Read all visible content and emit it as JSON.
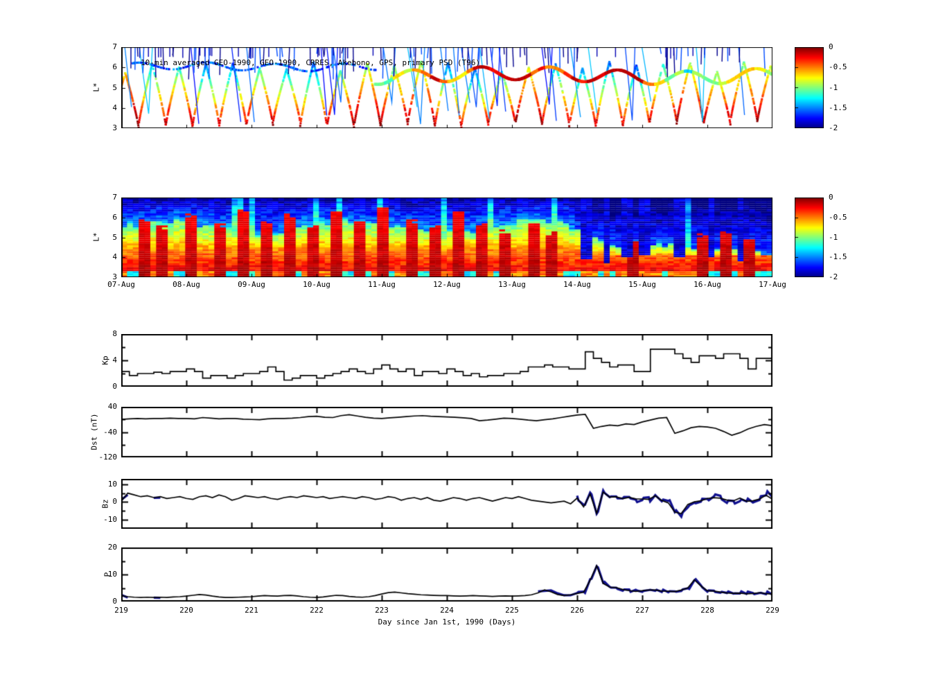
{
  "figure": {
    "background": "#ffffff"
  },
  "colors": {
    "axis": "#000000",
    "line_black": "#000000",
    "overlay_blue": "#10108f",
    "colormap": "jet",
    "colorbar_top": "#7f0000",
    "colorbar_bottom": "#00007f"
  },
  "xaxis": {
    "label": "Day since Jan 1st, 1990 (Days)",
    "tick_labels": [
      "219",
      "220",
      "221",
      "222",
      "223",
      "224",
      "225",
      "226",
      "227",
      "228",
      "229"
    ],
    "xlim": [
      219,
      229
    ]
  },
  "chart_data": [
    {
      "id": "psd_scatter",
      "type": "scatter",
      "title": "10-min averaged GEO-1990, GEO-1990, CRRES, Akebono, GPS, primary PSD (T96)",
      "ylabel": "L*",
      "ylim": [
        3,
        7
      ],
      "yticks": [
        7,
        6,
        5,
        4,
        3
      ],
      "xlim": [
        219,
        229
      ],
      "value_range": [
        -2,
        0
      ],
      "colorbar_ticks": [
        "0",
        "-0.5",
        "-1",
        "-1.5",
        "-2"
      ],
      "render": {
        "seed": 7,
        "crres_period_days": 0.413,
        "crres_lmin": 3.05,
        "crres_lmax": 6.25,
        "geo_band_start_day": 222.9,
        "geo_band_center_l": 5.6,
        "early_band_l": 6.05,
        "akebono_dash_count": 80,
        "steep_pass_count": 26
      }
    },
    {
      "id": "psd_spectrogram",
      "type": "heatmap",
      "ylabel": "L*",
      "ylim": [
        3,
        7
      ],
      "yticks": [
        7,
        6,
        5,
        4,
        3
      ],
      "xlim": [
        219,
        229
      ],
      "value_range": [
        -2,
        0
      ],
      "colorbar_ticks": [
        "0",
        "-0.5",
        "-1",
        "-1.5",
        "-2"
      ],
      "xtick_labels": [
        "07-Aug",
        "08-Aug",
        "09-Aug",
        "10-Aug",
        "11-Aug",
        "12-Aug",
        "13-Aug",
        "14-Aug",
        "15-Aug",
        "16-Aug",
        "17-Aug"
      ],
      "render": {
        "seed": 11,
        "cols": 112,
        "rows": 40,
        "erosion_start_day": 225.9,
        "warm_plumes": [
          [
            219.35,
            6.0
          ],
          [
            219.65,
            5.6
          ],
          [
            220.1,
            6.3
          ],
          [
            220.5,
            5.8
          ],
          [
            220.85,
            6.6
          ],
          [
            221.25,
            5.9
          ],
          [
            221.6,
            6.2
          ],
          [
            221.95,
            5.7
          ],
          [
            222.3,
            6.4
          ],
          [
            222.65,
            5.9
          ],
          [
            223.05,
            6.6
          ],
          [
            223.45,
            6.0
          ],
          [
            223.8,
            5.6
          ],
          [
            224.2,
            6.3
          ],
          [
            224.55,
            5.8
          ],
          [
            224.9,
            5.5
          ],
          [
            225.3,
            5.9
          ],
          [
            225.6,
            5.4
          ],
          [
            226.9,
            4.9
          ],
          [
            227.9,
            5.2
          ],
          [
            228.3,
            5.4
          ],
          [
            228.65,
            5.0
          ]
        ],
        "cold_plumes": [
          [
            226.15,
            3.9
          ],
          [
            226.45,
            3.7
          ],
          [
            226.75,
            4.0
          ],
          [
            227.05,
            4.1
          ],
          [
            227.55,
            4.0
          ],
          [
            228.05,
            4.0
          ],
          [
            228.5,
            3.8
          ]
        ]
      }
    },
    {
      "id": "kp",
      "type": "line",
      "ylabel": "Kp",
      "ylim": [
        0,
        8
      ],
      "yticks": [
        [
          "8",
          8
        ],
        [
          "4",
          4
        ],
        [
          "0",
          0
        ]
      ],
      "yminor": [
        2,
        6
      ],
      "xlim": [
        219,
        229
      ],
      "step": true,
      "x_start": 219,
      "dt_days": 0.125,
      "values": [
        2.3,
        1.7,
        2.0,
        2.0,
        2.2,
        2.0,
        2.3,
        2.3,
        2.7,
        2.3,
        1.3,
        1.7,
        1.7,
        1.3,
        1.7,
        2.0,
        2.0,
        2.3,
        3.0,
        2.3,
        1.0,
        1.3,
        1.7,
        1.7,
        1.3,
        1.7,
        2.0,
        2.3,
        2.7,
        2.3,
        2.0,
        2.7,
        3.3,
        2.7,
        2.3,
        2.7,
        1.7,
        2.3,
        2.3,
        2.0,
        2.7,
        2.3,
        1.7,
        2.0,
        1.5,
        1.7,
        1.7,
        2.0,
        2.0,
        2.3,
        3.0,
        3.0,
        3.3,
        3.0,
        3.0,
        2.7,
        2.7,
        5.3,
        4.3,
        3.7,
        3.0,
        3.3,
        3.3,
        2.3,
        2.3,
        5.7,
        5.7,
        5.7,
        5.0,
        4.3,
        3.7,
        4.7,
        4.7,
        4.3,
        5.0,
        5.0,
        4.3,
        2.7,
        4.3,
        4.3
      ]
    },
    {
      "id": "dst",
      "type": "line",
      "ylabel": "Dst (nT)",
      "ylim": [
        -120,
        40
      ],
      "yticks": [
        [
          "40",
          40
        ],
        [
          "-40",
          -40
        ],
        [
          "-120",
          -120
        ]
      ],
      "yminor": [
        0,
        -80
      ],
      "xlim": [
        219,
        229
      ],
      "step": false,
      "x_start": 219,
      "dt_days": 0.125,
      "values": [
        0,
        2,
        3,
        2,
        3,
        3,
        4,
        3,
        3,
        2,
        6,
        4,
        2,
        3,
        3,
        1,
        0,
        -1,
        2,
        3,
        3,
        4,
        6,
        9,
        10,
        7,
        6,
        12,
        15,
        11,
        7,
        4,
        3,
        5,
        7,
        9,
        11,
        12,
        10,
        9,
        8,
        7,
        5,
        3,
        -4,
        -2,
        1,
        4,
        3,
        1,
        -2,
        -4,
        -1,
        2,
        6,
        10,
        14,
        16,
        -28,
        -22,
        -18,
        -20,
        -14,
        -16,
        -8,
        -2,
        4,
        6,
        -44,
        -36,
        -26,
        -22,
        -24,
        -28,
        -38,
        -50,
        -42,
        -30,
        -22,
        -16,
        -20
      ]
    },
    {
      "id": "bz",
      "type": "line",
      "ylabel": "Bz",
      "ylim": [
        -15,
        13
      ],
      "yticks": [
        [
          "10",
          10
        ],
        [
          "0",
          0
        ],
        [
          "-10",
          -10
        ]
      ],
      "yminor": [
        5,
        -5
      ],
      "xlim": [
        219,
        229
      ],
      "step": false,
      "x_start": 219,
      "dt_days": 0.1,
      "overlays": [
        [
          219.0,
          219.13
        ],
        [
          219.5,
          219.63
        ],
        [
          225.92,
          229.0
        ]
      ],
      "values": [
        0.5,
        5,
        4,
        3,
        3.5,
        2.5,
        3,
        2,
        2.5,
        3,
        2,
        1.5,
        3,
        3.5,
        2.5,
        4,
        3,
        1,
        2,
        3.5,
        3,
        2.5,
        3,
        2,
        1.5,
        2.5,
        3,
        2.5,
        3.5,
        3,
        2.5,
        3,
        2,
        2.5,
        3,
        2.5,
        2,
        3,
        2.5,
        1.5,
        2,
        3,
        2.5,
        1,
        2,
        2.5,
        1.5,
        2.5,
        1,
        0.5,
        1.5,
        2.5,
        2,
        1,
        2,
        2.5,
        1.5,
        0.5,
        1.5,
        2.5,
        2,
        3,
        2,
        1,
        0.5,
        0,
        -0.5,
        0,
        0.5,
        -1,
        2,
        -3,
        5,
        -7,
        6,
        2,
        3,
        2,
        3,
        1,
        2.5,
        2,
        3,
        1,
        0,
        -5,
        -7,
        -2,
        0,
        1,
        2,
        3,
        2,
        1,
        0,
        1.5,
        1,
        0.5,
        2,
        4.5,
        2
      ]
    },
    {
      "id": "p",
      "type": "line",
      "ylabel": "P",
      "ylim": [
        0,
        20
      ],
      "yticks": [
        [
          "20",
          20
        ],
        [
          "10",
          10
        ],
        [
          "0",
          0
        ]
      ],
      "yminor": [
        5,
        15
      ],
      "xlim": [
        219,
        229
      ],
      "step": false,
      "x_start": 219,
      "dt_days": 0.1,
      "overlays": [
        [
          219.0,
          219.16
        ],
        [
          219.46,
          219.6
        ],
        [
          225.36,
          229.0
        ]
      ],
      "values": [
        2.2,
        1.8,
        1.6,
        1.5,
        1.6,
        1.5,
        1.6,
        1.5,
        1.7,
        1.8,
        2.0,
        2.3,
        2.6,
        2.4,
        2.0,
        1.7,
        1.5,
        1.5,
        1.6,
        1.7,
        1.8,
        2.0,
        2.2,
        2.1,
        2.0,
        2.2,
        2.3,
        2.1,
        1.8,
        1.6,
        1.5,
        1.7,
        2.0,
        2.3,
        2.2,
        1.9,
        1.7,
        1.6,
        1.8,
        2.2,
        2.8,
        3.3,
        3.5,
        3.2,
        2.9,
        2.7,
        2.5,
        2.4,
        2.3,
        2.2,
        2.2,
        2.1,
        2.0,
        2.1,
        2.2,
        2.1,
        2.0,
        1.9,
        2.0,
        2.1,
        2.0,
        2.1,
        2.2,
        2.5,
        3.2,
        4.3,
        3.6,
        2.6,
        2.2,
        2.5,
        3.0,
        3.5,
        8.0,
        13.0,
        7.0,
        5.5,
        5.0,
        4.5,
        4.2,
        4.0,
        3.8,
        4.0,
        4.2,
        4.0,
        3.8,
        3.9,
        4.2,
        5.0,
        7.8,
        5.5,
        4.2,
        3.8,
        3.6,
        3.4,
        3.2,
        3.3,
        3.1,
        2.9,
        3.0,
        3.1,
        2.8
      ]
    }
  ]
}
